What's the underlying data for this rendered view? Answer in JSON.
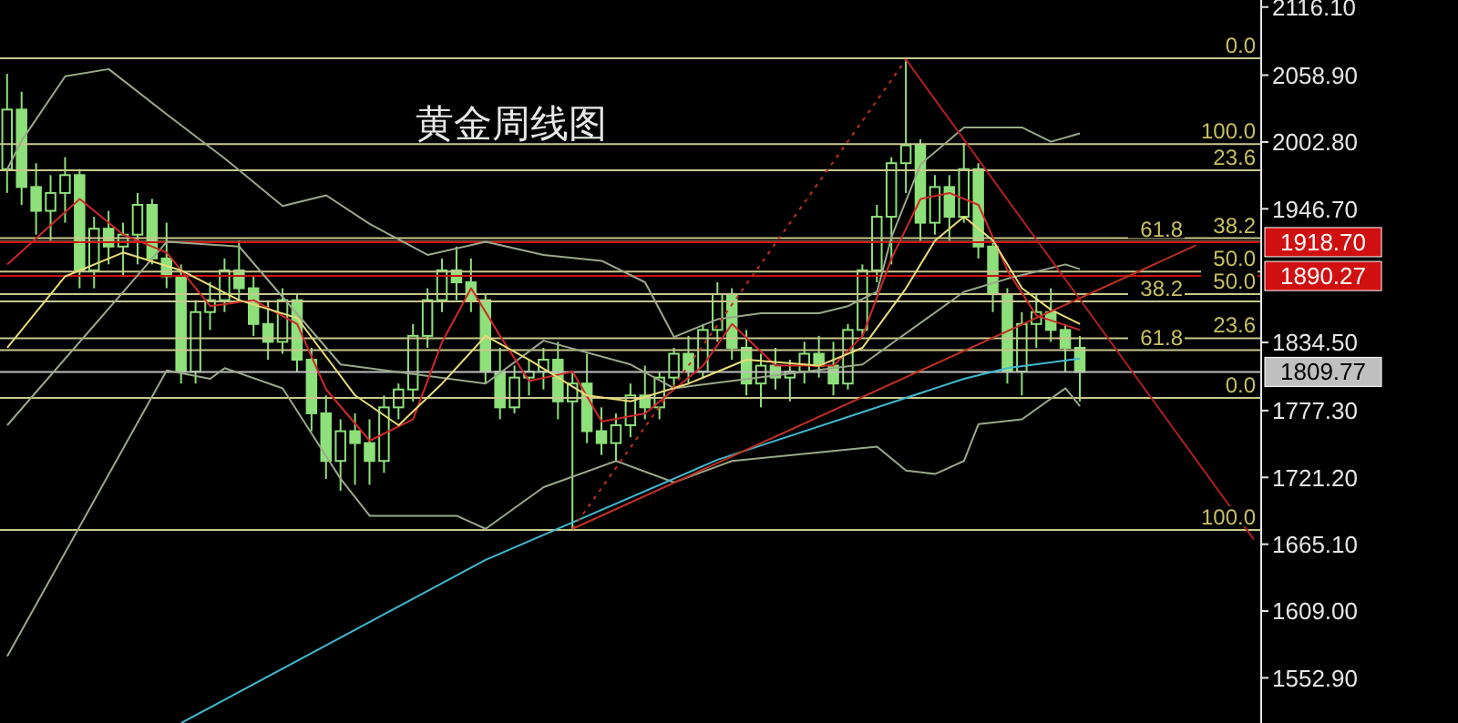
{
  "chart_data": {
    "type": "candlestick",
    "title": "黄金周线图",
    "color": "#8ee07a",
    "tick_labels": "y",
    "categories": [
      null,
      null,
      null,
      null,
      null,
      null,
      null,
      null,
      null,
      null,
      null,
      null,
      null,
      null,
      null,
      null,
      null,
      null,
      null,
      null,
      null,
      null,
      null,
      null,
      null,
      null,
      null,
      null,
      null,
      null,
      null,
      null,
      null,
      null,
      null,
      null,
      null,
      null,
      null,
      null,
      null,
      null,
      null,
      null,
      null,
      null,
      null,
      null,
      null,
      null,
      null,
      null,
      null,
      null,
      null,
      null,
      null,
      null,
      null,
      null,
      null,
      null,
      null,
      null,
      null,
      null,
      null,
      null,
      null,
      null,
      null,
      null,
      null,
      null,
      null,
      null,
      null,
      null,
      null,
      null,
      null,
      null,
      null,
      null,
      null,
      null,
      null
    ],
    "ohlc": [
      [
        1980,
        2060,
        1960,
        2030
      ],
      [
        2030,
        2045,
        1950,
        1965
      ],
      [
        1965,
        1985,
        1925,
        1945
      ],
      [
        1945,
        1975,
        1920,
        1960
      ],
      [
        1960,
        1990,
        1935,
        1975
      ],
      [
        1975,
        1980,
        1880,
        1895
      ],
      [
        1895,
        1940,
        1880,
        1930
      ],
      [
        1930,
        1945,
        1900,
        1915
      ],
      [
        1915,
        1935,
        1890,
        1925
      ],
      [
        1925,
        1960,
        1900,
        1950
      ],
      [
        1950,
        1955,
        1900,
        1905
      ],
      [
        1905,
        1935,
        1880,
        1890
      ],
      [
        1890,
        1900,
        1800,
        1810
      ],
      [
        1810,
        1870,
        1800,
        1860
      ],
      [
        1860,
        1885,
        1845,
        1870
      ],
      [
        1870,
        1905,
        1860,
        1895
      ],
      [
        1895,
        1920,
        1870,
        1880
      ],
      [
        1880,
        1890,
        1840,
        1850
      ],
      [
        1850,
        1870,
        1820,
        1835
      ],
      [
        1835,
        1880,
        1825,
        1870
      ],
      [
        1870,
        1875,
        1810,
        1820
      ],
      [
        1820,
        1830,
        1760,
        1775
      ],
      [
        1775,
        1790,
        1720,
        1735
      ],
      [
        1735,
        1770,
        1710,
        1760
      ],
      [
        1760,
        1775,
        1715,
        1750
      ],
      [
        1750,
        1770,
        1715,
        1735
      ],
      [
        1735,
        1790,
        1725,
        1780
      ],
      [
        1780,
        1800,
        1770,
        1795
      ],
      [
        1795,
        1850,
        1785,
        1840
      ],
      [
        1840,
        1880,
        1830,
        1870
      ],
      [
        1870,
        1905,
        1860,
        1895
      ],
      [
        1895,
        1915,
        1870,
        1885
      ],
      [
        1885,
        1905,
        1860,
        1870
      ],
      [
        1870,
        1875,
        1800,
        1810
      ],
      [
        1810,
        1830,
        1770,
        1780
      ],
      [
        1780,
        1815,
        1775,
        1805
      ],
      [
        1805,
        1820,
        1790,
        1810
      ],
      [
        1810,
        1830,
        1795,
        1820
      ],
      [
        1820,
        1835,
        1770,
        1785
      ],
      [
        1785,
        1810,
        1678,
        1800
      ],
      [
        1800,
        1825,
        1750,
        1760
      ],
      [
        1760,
        1780,
        1740,
        1750
      ],
      [
        1750,
        1775,
        1735,
        1765
      ],
      [
        1765,
        1800,
        1755,
        1790
      ],
      [
        1790,
        1815,
        1770,
        1780
      ],
      [
        1780,
        1810,
        1770,
        1805
      ],
      [
        1805,
        1830,
        1795,
        1825
      ],
      [
        1825,
        1840,
        1800,
        1810
      ],
      [
        1810,
        1850,
        1805,
        1845
      ],
      [
        1845,
        1885,
        1835,
        1875
      ],
      [
        1875,
        1880,
        1820,
        1830
      ],
      [
        1830,
        1845,
        1790,
        1800
      ],
      [
        1800,
        1825,
        1780,
        1815
      ],
      [
        1815,
        1830,
        1795,
        1805
      ],
      [
        1805,
        1820,
        1785,
        1810
      ],
      [
        1810,
        1835,
        1800,
        1825
      ],
      [
        1825,
        1840,
        1805,
        1815
      ],
      [
        1815,
        1835,
        1790,
        1800
      ],
      [
        1800,
        1850,
        1795,
        1845
      ],
      [
        1845,
        1900,
        1840,
        1895
      ],
      [
        1895,
        1950,
        1885,
        1940
      ],
      [
        1940,
        1990,
        1900,
        1985
      ],
      [
        1985,
        2072,
        1960,
        2000
      ],
      [
        2000,
        2005,
        1920,
        1935
      ],
      [
        1935,
        1975,
        1925,
        1965
      ],
      [
        1965,
        1975,
        1920,
        1940
      ],
      [
        1940,
        2002,
        1935,
        1980
      ],
      [
        1980,
        1985,
        1905,
        1915
      ],
      [
        1915,
        1920,
        1860,
        1875
      ],
      [
        1875,
        1880,
        1800,
        1810
      ],
      [
        1810,
        1860,
        1790,
        1850
      ],
      [
        1850,
        1875,
        1830,
        1860
      ],
      [
        1860,
        1880,
        1835,
        1845
      ],
      [
        1845,
        1850,
        1810,
        1830
      ],
      [
        1830,
        1840,
        1785,
        1809.77
      ],
      null,
      null,
      null,
      null,
      null,
      null,
      null,
      null,
      null,
      null,
      null,
      null
    ],
    "series": [
      {
        "type": "line",
        "color": "#9aa88a",
        "values": [
          1980,
          2004,
          null,
          null,
          2058,
          null,
          null,
          2064,
          null,
          null,
          null,
          2026,
          null,
          null,
          null,
          1989,
          null,
          null,
          null,
          1949,
          null,
          null,
          1958,
          null,
          null,
          1934,
          null,
          null,
          null,
          1908,
          null,
          null,
          null,
          1919,
          null,
          null,
          null,
          1908,
          null,
          null,
          null,
          1903,
          null,
          null,
          1885,
          null,
          1839,
          null,
          null,
          1854,
          null,
          null,
          1859,
          null,
          null,
          null,
          1859,
          null,
          1865,
          null,
          1877,
          1923,
          null,
          1984,
          null,
          null,
          2015,
          null,
          null,
          null,
          2015,
          null,
          2003,
          null,
          2010,
          null,
          null,
          null,
          null,
          null,
          null,
          null,
          null,
          null,
          null,
          null,
          null
        ]
      },
      {
        "type": "line",
        "color": "#9aa88a",
        "values": [
          1765,
          null,
          null,
          null,
          null,
          null,
          null,
          null,
          null,
          null,
          null,
          1919,
          null,
          null,
          null,
          null,
          1915,
          null,
          null,
          null,
          null,
          null,
          null,
          1816,
          null,
          null,
          null,
          null,
          null,
          null,
          null,
          null,
          null,
          1800,
          null,
          null,
          null,
          1836,
          null,
          null,
          null,
          null,
          null,
          1816,
          null,
          null,
          1796,
          null,
          null,
          null,
          null,
          null,
          null,
          null,
          null,
          null,
          null,
          null,
          null,
          1816,
          null,
          null,
          null,
          null,
          null,
          null,
          1877,
          null,
          null,
          1888,
          null,
          null,
          null,
          1900,
          1896,
          null,
          null,
          null,
          null,
          null,
          null,
          null,
          null,
          null,
          null,
          null,
          null
        ]
      },
      {
        "type": "line",
        "color": "#9aa88a",
        "values": [
          1571,
          null,
          null,
          null,
          null,
          null,
          null,
          null,
          null,
          null,
          null,
          1811,
          null,
          null,
          1804,
          1813,
          null,
          null,
          null,
          1796,
          null,
          null,
          null,
          1720,
          null,
          1689,
          null,
          null,
          null,
          null,
          null,
          1689,
          null,
          1678,
          null,
          null,
          null,
          1713,
          null,
          null,
          null,
          null,
          1735,
          null,
          null,
          null,
          1717,
          null,
          null,
          null,
          1735,
          null,
          null,
          null,
          null,
          null,
          null,
          null,
          null,
          null,
          1747,
          null,
          1727,
          null,
          1724,
          null,
          1735,
          1766,
          null,
          null,
          1770,
          null,
          null,
          1796,
          1781,
          null,
          null,
          null,
          null,
          null,
          null,
          null,
          null,
          null,
          null,
          null,
          null
        ]
      },
      {
        "type": "line",
        "color": "#d02828",
        "values": [
          1900,
          null,
          null,
          null,
          null,
          1955,
          null,
          null,
          1925,
          null,
          null,
          1910,
          null,
          null,
          1865,
          null,
          null,
          1870,
          null,
          null,
          1850,
          null,
          1795,
          null,
          null,
          1752,
          null,
          null,
          1770,
          null,
          1835,
          null,
          1880,
          null,
          1840,
          null,
          1802,
          null,
          null,
          1810,
          null,
          1768,
          null,
          null,
          1775,
          null,
          null,
          null,
          1815,
          null,
          1850,
          null,
          null,
          1815,
          null,
          null,
          null,
          1815,
          null,
          1840,
          null,
          1905,
          null,
          1955,
          null,
          1960,
          null,
          1950,
          null,
          1895,
          null,
          1857,
          null,
          null,
          1845,
          null,
          null,
          null,
          null,
          null,
          null,
          null,
          null,
          null,
          null,
          null,
          null
        ]
      },
      {
        "type": "line",
        "color": "#e8dc78",
        "values": [
          1830,
          null,
          null,
          null,
          1890,
          null,
          null,
          null,
          1910,
          null,
          null,
          null,
          1895,
          null,
          null,
          null,
          1870,
          null,
          null,
          null,
          1855,
          null,
          null,
          null,
          1790,
          null,
          null,
          1765,
          null,
          null,
          1800,
          null,
          null,
          1840,
          null,
          null,
          1820,
          null,
          null,
          null,
          1790,
          null,
          null,
          1785,
          null,
          null,
          null,
          1800,
          null,
          null,
          null,
          1820,
          null,
          null,
          null,
          null,
          1815,
          null,
          null,
          1830,
          null,
          null,
          1880,
          null,
          1920,
          null,
          1940,
          null,
          1920,
          null,
          1880,
          null,
          1862,
          null,
          1850,
          null,
          null,
          null,
          null,
          null,
          null,
          null,
          null,
          null,
          null,
          null,
          null
        ]
      },
      {
        "type": "line",
        "color": "#40b8d0",
        "values": [
          null,
          null,
          null,
          null,
          null,
          null,
          null,
          null,
          null,
          null,
          null,
          null,
          1515,
          null,
          null,
          null,
          null,
          null,
          null,
          null,
          null,
          null,
          null,
          null,
          null,
          null,
          null,
          null,
          null,
          null,
          null,
          null,
          null,
          1652,
          null,
          null,
          null,
          null,
          null,
          null,
          null,
          null,
          null,
          null,
          null,
          null,
          null,
          null,
          null,
          1736,
          null,
          null,
          null,
          null,
          null,
          null,
          null,
          null,
          null,
          null,
          null,
          null,
          null,
          null,
          null,
          null,
          1804,
          null,
          null,
          1813,
          null,
          null,
          null,
          null,
          1821,
          null,
          null,
          null,
          null,
          null,
          null,
          null,
          null,
          null,
          null,
          null,
          null
        ]
      },
      {
        "type": "line",
        "color": "#c03020",
        "values": [
          null,
          null,
          null,
          null,
          null,
          null,
          null,
          null,
          null,
          null,
          null,
          null,
          null,
          null,
          null,
          null,
          null,
          null,
          null,
          null,
          null,
          null,
          null,
          null,
          null,
          null,
          null,
          null,
          null,
          null,
          null,
          null,
          null,
          null,
          null,
          null,
          null,
          null,
          null,
          1678,
          null,
          null,
          null,
          null,
          null,
          null,
          null,
          null,
          null,
          null,
          null,
          null,
          null,
          null,
          null,
          null,
          null,
          null,
          null,
          null,
          null,
          null,
          null,
          null,
          null,
          null,
          null,
          null,
          null,
          null,
          null,
          null,
          null,
          null,
          null,
          null,
          null,
          null,
          null,
          null,
          null,
          null,
          1916,
          null,
          null,
          null,
          null
        ]
      },
      {
        "type": "line",
        "color": "#c03020",
        "line_style": "dotted",
        "values": [
          null,
          null,
          null,
          null,
          null,
          null,
          null,
          null,
          null,
          null,
          null,
          null,
          null,
          null,
          null,
          null,
          null,
          null,
          null,
          null,
          null,
          null,
          null,
          null,
          null,
          null,
          null,
          null,
          null,
          null,
          null,
          null,
          null,
          null,
          null,
          null,
          null,
          null,
          null,
          1678,
          null,
          null,
          null,
          null,
          null,
          null,
          null,
          null,
          null,
          null,
          null,
          null,
          null,
          null,
          null,
          null,
          null,
          null,
          null,
          null,
          null,
          null,
          2072,
          null,
          null,
          null,
          null,
          null,
          null,
          null,
          null,
          null,
          null,
          null,
          null,
          null,
          null,
          null,
          null,
          null,
          null,
          null,
          null,
          null,
          null,
          null,
          null
        ]
      },
      {
        "type": "line",
        "color": "#b02020",
        "values": [
          null,
          null,
          null,
          null,
          null,
          null,
          null,
          null,
          null,
          null,
          null,
          null,
          null,
          null,
          null,
          null,
          null,
          null,
          null,
          null,
          null,
          null,
          null,
          null,
          null,
          null,
          null,
          null,
          null,
          null,
          null,
          null,
          null,
          null,
          null,
          null,
          null,
          null,
          null,
          null,
          null,
          null,
          null,
          null,
          null,
          null,
          null,
          null,
          null,
          null,
          null,
          null,
          null,
          null,
          null,
          null,
          null,
          null,
          null,
          null,
          null,
          null,
          2072,
          null,
          null,
          null,
          null,
          null,
          null,
          null,
          null,
          null,
          null,
          null,
          null,
          null,
          null,
          null,
          null,
          null,
          null,
          null,
          null,
          null,
          null,
          null,
          1669
        ]
      }
    ],
    "ylim": [
      1515,
      2122
    ],
    "yticks": [
      {
        "value": 2116.1,
        "label": "2116.10"
      },
      {
        "value": 2058.9,
        "label": "2058.90"
      },
      {
        "value": 2002.8,
        "label": "2002.80"
      },
      {
        "value": 1946.7,
        "label": "1946.70"
      },
      {
        "value": 1834.5,
        "label": "1834.50"
      },
      {
        "value": 1777.3,
        "label": "1777.30"
      },
      {
        "value": 1721.2,
        "label": "1721.20"
      },
      {
        "value": 1665.1,
        "label": "1665.10"
      },
      {
        "value": 1609,
        "label": "1609.00"
      },
      {
        "value": 1552.9,
        "label": "1552.90"
      }
    ],
    "ref_lines": [
      {
        "axis": "y",
        "value": 2073,
        "color": "#c8c890"
      },
      {
        "axis": "y",
        "value": 2001,
        "color": "#c8c890"
      },
      {
        "axis": "y",
        "value": 1979,
        "color": "#c8c890"
      },
      {
        "axis": "y",
        "value": 1922,
        "color": "#c8c890"
      },
      {
        "axis": "y",
        "value": 1919,
        "color": "#c8c890"
      },
      {
        "axis": "y",
        "value": 1918.7,
        "label": "1918.70",
        "color": "#d01010"
      },
      {
        "axis": "y",
        "value": 1894,
        "color": "#c8c890"
      },
      {
        "axis": "y",
        "value": 1890.27,
        "label": "1890.27",
        "color": "#d01010"
      },
      {
        "axis": "y",
        "value": 1875,
        "color": "#c8c890"
      },
      {
        "axis": "y",
        "value": 1869,
        "color": "#c8c890"
      },
      {
        "axis": "y",
        "value": 1838,
        "color": "#c8c890"
      },
      {
        "axis": "y",
        "value": 1828,
        "color": "#c8c890"
      },
      {
        "axis": "y",
        "value": 1809.77,
        "label": "1809.77",
        "color": "#c0c0c0"
      },
      {
        "axis": "y",
        "value": 1788,
        "color": "#c8c890"
      },
      {
        "axis": "y",
        "value": 1677,
        "color": "#c8c890"
      }
    ],
    "annotations": [
      {
        "text": "0.0",
        "y": 2073
      },
      {
        "text": "100.0",
        "y": 2001
      },
      {
        "text": "23.6",
        "y": 1979
      },
      {
        "text": "38.2",
        "y": 1922
      },
      {
        "text": "61.8",
        "y": 1919
      },
      {
        "text": "50.0",
        "y": 1894
      },
      {
        "text": "50.0",
        "y": 1875
      },
      {
        "text": "38.2",
        "y": 1869
      },
      {
        "text": "23.6",
        "y": 1838
      },
      {
        "text": "61.8",
        "y": 1828
      },
      {
        "text": "0.0",
        "y": 1788
      },
      {
        "text": "100.0",
        "y": 1677
      }
    ]
  }
}
